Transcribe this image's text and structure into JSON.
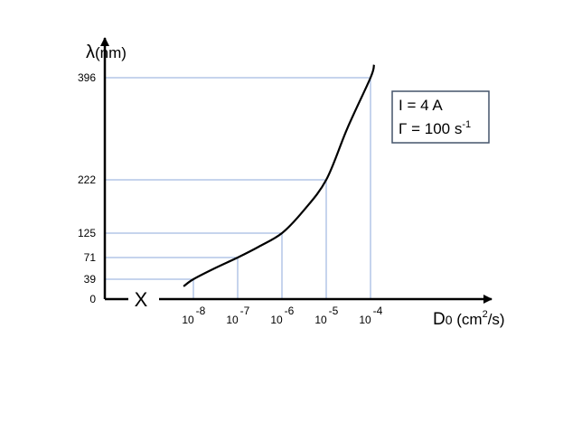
{
  "chart_data": {
    "type": "line",
    "ylabel": {
      "symbol": "λ",
      "unit": "(nm)"
    },
    "xlabel": {
      "symbol": "D",
      "subscript": "0",
      "unit_open": " (cm",
      "unit_sup": "2",
      "unit_close": "/s)"
    },
    "y_ticks": [
      0,
      39,
      71,
      125,
      222,
      396
    ],
    "x_ticks": [
      {
        "base": "10",
        "exp": "-8",
        "value": 1e-08
      },
      {
        "base": "10",
        "exp": "-7",
        "value": 1e-07
      },
      {
        "base": "10",
        "exp": "-6",
        "value": 1e-06
      },
      {
        "base": "10",
        "exp": "-5",
        "value": 1e-05
      },
      {
        "base": "10",
        "exp": "-4",
        "value": 0.0001
      }
    ],
    "x_scale": "log",
    "marker_label": "X",
    "series": [
      {
        "points": [
          {
            "x": 6e-09,
            "y": 25
          },
          {
            "x": 1e-08,
            "y": 39
          },
          {
            "x": 3e-08,
            "y": 55
          },
          {
            "x": 1e-07,
            "y": 71
          },
          {
            "x": 3e-07,
            "y": 95
          },
          {
            "x": 1e-06,
            "y": 125
          },
          {
            "x": 3e-06,
            "y": 165
          },
          {
            "x": 1e-05,
            "y": 222
          },
          {
            "x": 3e-05,
            "y": 310
          },
          {
            "x": 0.0001,
            "y": 396
          },
          {
            "x": 0.00012,
            "y": 418
          }
        ]
      }
    ],
    "reference_lines": [
      {
        "x": 1e-08,
        "y": 39
      },
      {
        "x": 1e-07,
        "y": 71
      },
      {
        "x": 1e-06,
        "y": 125
      },
      {
        "x": 1e-05,
        "y": 222
      },
      {
        "x": 0.0001,
        "y": 396
      }
    ],
    "legend": {
      "line1": "I = 4 A",
      "line2_symbol": "Γ",
      "line2_text": " = 100 s",
      "line2_sup": "-1"
    },
    "colors": {
      "curve": "#000000",
      "axes": "#000000",
      "reference": "#8eaadb",
      "legend_border": "#44546a"
    }
  }
}
